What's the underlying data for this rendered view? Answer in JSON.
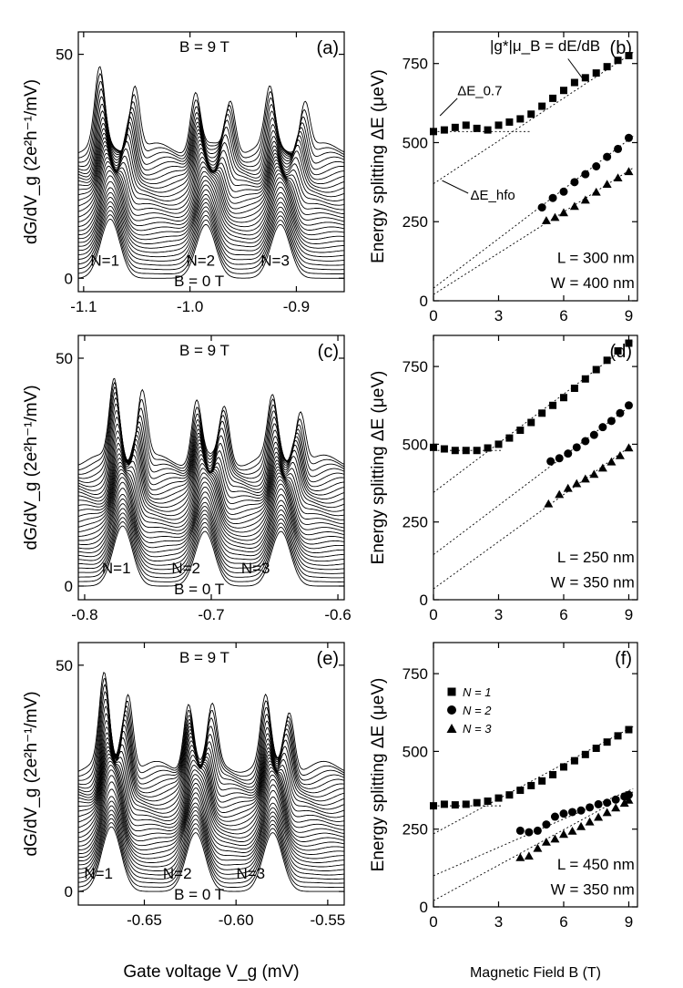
{
  "figure": {
    "bottom_xlabel_left": "Gate voltage V_g (mV)",
    "bottom_xlabel_right": "Magnetic Field B (T)"
  },
  "chart_data": [
    {
      "id": "a",
      "type": "line",
      "panel_label": "(a)",
      "title_top": "B = 9 T",
      "title_bottom": "B = 0 T",
      "ylabel": "dG/dV_g (2e²h⁻¹/mV)",
      "xlim": [
        -1.105,
        -0.855
      ],
      "ylim": [
        -3,
        55
      ],
      "xticks": [
        -1.1,
        -1.0,
        -0.9
      ],
      "xtick_labels": [
        "-1.1",
        "-1.0",
        "-0.9"
      ],
      "yticks": [
        0,
        50
      ],
      "ytick_labels": [
        "0",
        "50"
      ],
      "n_traces": 30,
      "trace_offset": 1.0,
      "peaks_low_B": [
        -1.075,
        -0.985,
        -0.915
      ],
      "peak_height_low": 12,
      "peak_height_high": 19,
      "zeeman_shift": 0.033,
      "peak_labels": [
        {
          "text": "N=1",
          "x": -1.08,
          "y": 2
        },
        {
          "text": "N=2",
          "x": -0.99,
          "y": 2
        },
        {
          "text": "N=3",
          "x": -0.92,
          "y": 2
        }
      ]
    },
    {
      "id": "b",
      "type": "scatter",
      "panel_label": "(b)",
      "ylabel": "Energy splitting ΔE (μeV)",
      "xlim": [
        0,
        9.4
      ],
      "ylim": [
        0,
        850
      ],
      "xticks": [
        0,
        3,
        6,
        9
      ],
      "xtick_labels": [
        "0",
        "3",
        "6",
        "9"
      ],
      "yticks": [
        0,
        250,
        500,
        750
      ],
      "ytick_labels": [
        "0",
        "250",
        "500",
        "750"
      ],
      "series": [
        {
          "name": "N = 1",
          "marker": "square",
          "x": [
            0.0,
            0.5,
            1.0,
            1.5,
            2.0,
            2.5,
            3.0,
            3.5,
            4.0,
            4.5,
            5.0,
            5.5,
            6.0,
            6.5,
            7.0,
            7.5,
            8.0,
            8.5,
            9.0
          ],
          "y": [
            535,
            540,
            548,
            555,
            545,
            540,
            555,
            565,
            575,
            590,
            615,
            640,
            665,
            690,
            705,
            720,
            740,
            760,
            775
          ]
        },
        {
          "name": "N = 2",
          "marker": "circle",
          "x": [
            5.0,
            5.5,
            6.0,
            6.5,
            7.0,
            7.5,
            8.0,
            8.5,
            9.0
          ],
          "y": [
            295,
            325,
            345,
            375,
            400,
            425,
            455,
            480,
            515
          ]
        },
        {
          "name": "N = 3",
          "marker": "triangle",
          "x": [
            5.2,
            5.6,
            6.0,
            6.5,
            7.0,
            7.5,
            8.0,
            8.5,
            9.0
          ],
          "y": [
            255,
            265,
            280,
            300,
            320,
            345,
            370,
            390,
            410
          ]
        }
      ],
      "fits": [
        {
          "x": [
            0,
            9.2
          ],
          "y": [
            370,
            785
          ]
        },
        {
          "x": [
            0,
            9.2
          ],
          "y": [
            40,
            520
          ]
        },
        {
          "x": [
            0,
            9.2
          ],
          "y": [
            20,
            420
          ]
        },
        {
          "x": [
            0,
            4.5
          ],
          "y": [
            535,
            535
          ]
        }
      ],
      "annotations": [
        {
          "text": "|g*|μ_B = dE/dB",
          "x": 2.6,
          "y": 790
        },
        {
          "text": "ΔE_0.7",
          "x": 1.1,
          "y": 650
        },
        {
          "text": "ΔE_hfo",
          "x": 1.7,
          "y": 320
        },
        {
          "text": "L = 300 nm",
          "x": 5.7,
          "y": 120
        },
        {
          "text": "W = 400 nm",
          "x": 5.4,
          "y": 40
        }
      ]
    },
    {
      "id": "c",
      "type": "line",
      "panel_label": "(c)",
      "title_top": "B = 9 T",
      "title_bottom": "B = 0 T",
      "ylabel": "dG/dV_g (2e²h⁻¹/mV)",
      "xlim": [
        -0.805,
        -0.595
      ],
      "ylim": [
        -3,
        55
      ],
      "xticks": [
        -0.8,
        -0.7,
        -0.6
      ],
      "xtick_labels": [
        "-0.8",
        "-0.7",
        "-0.6"
      ],
      "yticks": [
        0,
        50
      ],
      "ytick_labels": [
        "0",
        "50"
      ],
      "n_traces": 30,
      "trace_offset": 0.95,
      "peaks_low_B": [
        -0.77,
        -0.705,
        -0.645
      ],
      "peak_height_low": 12,
      "peak_height_high": 20,
      "zeeman_shift": 0.022,
      "peak_labels": [
        {
          "text": "N=1",
          "x": -0.775,
          "y": 2
        },
        {
          "text": "N=2",
          "x": -0.72,
          "y": 2
        },
        {
          "text": "N=3",
          "x": -0.665,
          "y": 2
        }
      ]
    },
    {
      "id": "d",
      "type": "scatter",
      "panel_label": "(d)",
      "ylabel": "Energy splitting ΔE (μeV)",
      "xlim": [
        0,
        9.4
      ],
      "ylim": [
        0,
        850
      ],
      "xticks": [
        0,
        3,
        6,
        9
      ],
      "xtick_labels": [
        "0",
        "3",
        "6",
        "9"
      ],
      "yticks": [
        0,
        250,
        500,
        750
      ],
      "ytick_labels": [
        "0",
        "250",
        "500",
        "750"
      ],
      "series": [
        {
          "name": "N = 1",
          "marker": "square",
          "x": [
            0.0,
            0.5,
            1.0,
            1.5,
            2.0,
            2.5,
            3.0,
            3.5,
            4.0,
            4.5,
            5.0,
            5.5,
            6.0,
            6.5,
            7.0,
            7.5,
            8.0,
            8.5,
            9.0
          ],
          "y": [
            490,
            485,
            480,
            480,
            480,
            488,
            500,
            520,
            545,
            570,
            600,
            625,
            650,
            680,
            710,
            740,
            770,
            800,
            825
          ]
        },
        {
          "name": "N = 2",
          "marker": "circle",
          "x": [
            5.4,
            5.8,
            6.2,
            6.6,
            7.0,
            7.4,
            7.8,
            8.2,
            8.6,
            9.0
          ],
          "y": [
            445,
            455,
            470,
            490,
            510,
            530,
            555,
            575,
            600,
            625
          ]
        },
        {
          "name": "N = 3",
          "marker": "triangle",
          "x": [
            5.3,
            5.8,
            6.2,
            6.6,
            7.0,
            7.4,
            7.8,
            8.2,
            8.6,
            9.0
          ],
          "y": [
            310,
            340,
            360,
            375,
            390,
            405,
            425,
            445,
            465,
            490
          ]
        }
      ],
      "fits": [
        {
          "x": [
            0,
            9.2
          ],
          "y": [
            345,
            830
          ]
        },
        {
          "x": [
            0,
            9.2
          ],
          "y": [
            145,
            630
          ]
        },
        {
          "x": [
            0,
            9.2
          ],
          "y": [
            35,
            500
          ]
        },
        {
          "x": [
            0,
            3.2
          ],
          "y": [
            480,
            480
          ]
        }
      ],
      "annotations": [
        {
          "text": "L = 250 nm",
          "x": 5.7,
          "y": 120
        },
        {
          "text": "W = 350 nm",
          "x": 5.4,
          "y": 40
        }
      ]
    },
    {
      "id": "e",
      "type": "line",
      "panel_label": "(e)",
      "title_top": "B = 9 T",
      "title_bottom": "B = 0 T",
      "ylabel": "dG/dV_g (2e²h⁻¹/mV)",
      "xlim": [
        -0.686,
        -0.541
      ],
      "ylim": [
        -3,
        55
      ],
      "xticks": [
        -0.65,
        -0.6,
        -0.55
      ],
      "xtick_labels": [
        "-0.65",
        "-0.60",
        "-0.55"
      ],
      "yticks": [
        0,
        50
      ],
      "ytick_labels": [
        "0",
        "50"
      ],
      "n_traces": 30,
      "trace_offset": 0.95,
      "peaks_low_B": [
        -0.668,
        -0.622,
        -0.58
      ],
      "peak_height_low": 13,
      "peak_height_high": 22,
      "zeeman_shift": 0.013,
      "peak_labels": [
        {
          "text": "N=1",
          "x": -0.675,
          "y": 2
        },
        {
          "text": "N=2",
          "x": -0.632,
          "y": 2
        },
        {
          "text": "N=3",
          "x": -0.592,
          "y": 2
        }
      ]
    },
    {
      "id": "f",
      "type": "scatter",
      "panel_label": "(f)",
      "ylabel": "Energy splitting ΔE (μeV)",
      "xlim": [
        0,
        9.4
      ],
      "ylim": [
        0,
        850
      ],
      "xticks": [
        0,
        3,
        6,
        9
      ],
      "xtick_labels": [
        "0",
        "3",
        "6",
        "9"
      ],
      "yticks": [
        0,
        250,
        500,
        750
      ],
      "ytick_labels": [
        "0",
        "250",
        "500",
        "750"
      ],
      "series": [
        {
          "name": "N = 1",
          "marker": "square",
          "x": [
            0.0,
            0.5,
            1.0,
            1.5,
            2.0,
            2.5,
            3.0,
            3.5,
            4.0,
            4.5,
            5.0,
            5.5,
            6.0,
            6.5,
            7.0,
            7.5,
            8.0,
            8.5,
            9.0
          ],
          "y": [
            325,
            330,
            328,
            330,
            335,
            340,
            350,
            360,
            375,
            390,
            405,
            425,
            450,
            470,
            490,
            510,
            530,
            550,
            570
          ]
        },
        {
          "name": "N = 2",
          "marker": "circle",
          "x": [
            4.0,
            4.4,
            4.8,
            5.2,
            5.6,
            6.0,
            6.4,
            6.8,
            7.2,
            7.6,
            8.0,
            8.4,
            8.8,
            9.0
          ],
          "y": [
            245,
            240,
            245,
            265,
            290,
            300,
            305,
            310,
            320,
            330,
            335,
            345,
            355,
            360
          ]
        },
        {
          "name": "N = 3",
          "marker": "triangle",
          "x": [
            4.0,
            4.4,
            4.8,
            5.2,
            5.6,
            6.0,
            6.4,
            6.8,
            7.2,
            7.6,
            8.0,
            8.4,
            8.8,
            9.0
          ],
          "y": [
            160,
            165,
            190,
            210,
            220,
            235,
            245,
            260,
            275,
            290,
            305,
            320,
            335,
            345
          ]
        }
      ],
      "fits": [
        {
          "x": [
            0,
            9.2
          ],
          "y": [
            235,
            580
          ]
        },
        {
          "x": [
            0,
            9.2
          ],
          "y": [
            100,
            380
          ]
        },
        {
          "x": [
            0,
            9.2
          ],
          "y": [
            20,
            370
          ]
        },
        {
          "x": [
            0,
            3.2
          ],
          "y": [
            325,
            325
          ]
        }
      ],
      "annotations": [
        {
          "text": "L = 450 nm",
          "x": 5.7,
          "y": 120
        },
        {
          "text": "W = 350 nm",
          "x": 5.4,
          "y": 40
        }
      ],
      "legend": [
        {
          "marker": "square",
          "text": "N = 1"
        },
        {
          "marker": "circle",
          "text": "N = 2"
        },
        {
          "marker": "triangle",
          "text": "N = 3"
        }
      ]
    }
  ]
}
